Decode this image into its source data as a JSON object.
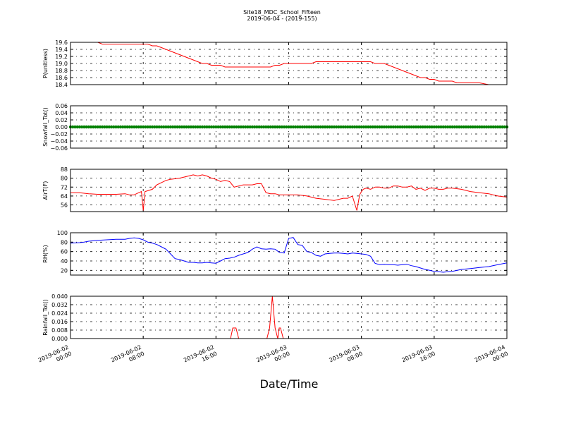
{
  "title": "Site18_MDC_School_Fifteen",
  "subtitle": "2019-06-04 - (2019-155)",
  "xlabel": "Date/Time",
  "x_ticks": [
    {
      "t": 0,
      "line1": "2019-06-02",
      "line2": "00:00"
    },
    {
      "t": 8,
      "line1": "2019-06-02",
      "line2": "08:00"
    },
    {
      "t": 16,
      "line1": "2019-06-02",
      "line2": "16:00"
    },
    {
      "t": 24,
      "line1": "2019-06-03",
      "line2": "00:00"
    },
    {
      "t": 32,
      "line1": "2019-06-03",
      "line2": "08:00"
    },
    {
      "t": 40,
      "line1": "2019-06-03",
      "line2": "16:00"
    },
    {
      "t": 48,
      "line1": "2019-06-04",
      "line2": "00:00"
    }
  ],
  "chart_data": [
    {
      "type": "line",
      "ylabel": "P(unitless)",
      "ylim": [
        18.4,
        19.6
      ],
      "yticks": [
        "19.6",
        "19.4",
        "19.2",
        "19.0",
        "18.8",
        "18.6",
        "18.4"
      ],
      "grid": true,
      "series": [
        {
          "color": "#ff0000",
          "x": [
            3.0,
            3.5,
            4,
            6,
            8,
            8.5,
            9,
            9.5,
            10,
            10.5,
            11,
            11.5,
            12,
            12.5,
            13,
            13.5,
            14,
            14.5,
            15,
            15.5,
            16,
            16.5,
            17,
            17.5,
            18,
            18.5,
            19,
            19.5,
            20,
            20.5,
            21,
            21.5,
            22,
            22.5,
            23,
            23.5,
            24,
            24.5,
            25,
            25.5,
            26,
            26.5,
            27,
            27.5,
            28,
            28.5,
            29,
            30,
            31,
            32,
            33,
            33.5,
            34,
            34.5,
            35,
            35.5,
            36,
            36.5,
            37,
            37.5,
            38,
            38.5,
            39,
            39.5,
            40,
            40.5,
            41,
            41.5,
            42,
            42.5,
            43,
            44,
            45,
            46,
            47,
            48
          ],
          "y": [
            19.6,
            19.55,
            19.55,
            19.55,
            19.55,
            19.55,
            19.5,
            19.5,
            19.45,
            19.4,
            19.35,
            19.3,
            19.25,
            19.2,
            19.15,
            19.1,
            19.05,
            19.0,
            19.0,
            18.95,
            18.95,
            18.95,
            18.9,
            18.9,
            18.9,
            18.9,
            18.9,
            18.9,
            18.9,
            18.9,
            18.9,
            18.9,
            18.9,
            18.95,
            18.95,
            19.0,
            19.0,
            19.0,
            19.0,
            19.0,
            19.0,
            19.0,
            19.05,
            19.05,
            19.05,
            19.05,
            19.05,
            19.05,
            19.05,
            19.05,
            19.05,
            19.0,
            19.0,
            19.0,
            18.95,
            18.9,
            18.85,
            18.8,
            18.75,
            18.7,
            18.65,
            18.6,
            18.6,
            18.55,
            18.55,
            18.5,
            18.5,
            18.5,
            18.5,
            18.45,
            18.45,
            18.45,
            18.45,
            18.4,
            18.4,
            18.4
          ]
        }
      ]
    },
    {
      "type": "scatter",
      "ylabel": "Snowfall_Tot()",
      "ylim": [
        -0.06,
        0.06
      ],
      "yticks": [
        "0.06",
        "0.04",
        "0.02",
        "0.00",
        "−0.02",
        "−0.04",
        "−0.06"
      ],
      "grid": true,
      "series": [
        {
          "color": "#008000",
          "constant": 0.0,
          "x_start": 0,
          "x_end": 48,
          "step": 0.25
        }
      ]
    },
    {
      "type": "line",
      "ylabel": "AirT(F)",
      "ylim": [
        50,
        88
      ],
      "yticks": [
        "88",
        "80",
        "72",
        "64",
        "56"
      ],
      "grid": true,
      "series": [
        {
          "color": "#ff0000",
          "x": [
            0,
            1,
            2,
            3,
            4,
            5,
            6,
            6.5,
            7,
            7.5,
            7.8,
            8,
            8.2,
            9,
            9.5,
            10,
            10.5,
            11,
            12,
            13,
            13.5,
            14,
            14.5,
            15,
            15.5,
            16,
            16.5,
            17,
            17.5,
            18,
            18.5,
            19,
            19.5,
            20,
            20.5,
            21,
            21.5,
            22,
            22.5,
            23,
            23.5,
            24,
            24.5,
            25,
            26,
            27,
            28,
            29,
            30,
            30.5,
            31,
            31.5,
            31.8,
            32,
            32.2,
            32.5,
            33,
            33.5,
            34,
            34.5,
            35,
            35.5,
            36,
            36.5,
            37,
            37.5,
            38,
            38.5,
            39,
            39.5,
            40,
            40.5,
            41,
            41.5,
            42,
            43,
            44,
            45,
            46,
            47,
            48
          ],
          "y": [
            67,
            67,
            66,
            65.5,
            65.5,
            65.5,
            66,
            65,
            65,
            67,
            68,
            51,
            68,
            70,
            74,
            76,
            78,
            79,
            80,
            82,
            83,
            82,
            83,
            82,
            80,
            79,
            77,
            78,
            77,
            72,
            73,
            74,
            74,
            74,
            75,
            75,
            67,
            66,
            66,
            65,
            65,
            65,
            65,
            65,
            64,
            62,
            61,
            60,
            62,
            62,
            64,
            51,
            65,
            68,
            70,
            71,
            70,
            72,
            72,
            71,
            71,
            73,
            73,
            72,
            72,
            73,
            70,
            71,
            69,
            71,
            71,
            70,
            70,
            71,
            71,
            70,
            68,
            67,
            66,
            64,
            63
          ]
        }
      ]
    },
    {
      "type": "line",
      "ylabel": "RH(%)",
      "ylim": [
        10,
        100
      ],
      "yticks": [
        "100",
        "80",
        "60",
        "40",
        "20"
      ],
      "grid": true,
      "series": [
        {
          "color": "#0000ff",
          "x": [
            0,
            1,
            1.5,
            2,
            3,
            4,
            5,
            6,
            6.5,
            7,
            7.5,
            8,
            8.5,
            9,
            9.5,
            10,
            10.5,
            11,
            11.5,
            12,
            12.5,
            13,
            13.5,
            14,
            14.5,
            15,
            15.5,
            16,
            16.5,
            17,
            17.5,
            18,
            18.5,
            19,
            19.5,
            20,
            20.5,
            21,
            21.5,
            22,
            22.5,
            23,
            23.5,
            24,
            24.5,
            25,
            25.5,
            26,
            26.5,
            27,
            27.5,
            28,
            28.5,
            29,
            29.5,
            30,
            30.5,
            31,
            31.5,
            32,
            32.5,
            33,
            33.5,
            34,
            34.5,
            35,
            35.5,
            36,
            36.5,
            37,
            37.5,
            38,
            38.5,
            39,
            39.5,
            40,
            40.5,
            41,
            41.5,
            42,
            43,
            44,
            45,
            46,
            47,
            48
          ],
          "y": [
            78,
            79,
            80,
            82,
            84,
            85,
            86,
            86,
            88,
            89,
            88,
            85,
            80,
            78,
            75,
            70,
            65,
            55,
            45,
            43,
            40,
            37,
            37,
            36,
            36,
            37,
            36,
            35,
            40,
            45,
            46,
            48,
            52,
            55,
            58,
            65,
            70,
            66,
            65,
            66,
            65,
            58,
            57,
            88,
            90,
            75,
            73,
            60,
            58,
            52,
            50,
            55,
            56,
            57,
            57,
            56,
            55,
            57,
            56,
            55,
            54,
            50,
            35,
            32,
            33,
            32,
            32,
            31,
            32,
            33,
            30,
            28,
            25,
            22,
            20,
            18,
            17,
            16,
            17,
            18,
            22,
            24,
            26,
            28,
            32,
            36
          ]
        }
      ]
    },
    {
      "type": "line",
      "ylabel": "Rainfall_Tot()",
      "ylim": [
        0,
        0.04
      ],
      "yticks": [
        "0.040",
        "0.032",
        "0.024",
        "0.016",
        "0.008",
        "0.000"
      ],
      "grid": true,
      "series": [
        {
          "color": "#ff0000",
          "x": [
            0,
            17.6,
            17.85,
            18.2,
            18.5,
            21.6,
            21.9,
            22.2,
            22.5,
            22.8,
            22.95,
            23.1,
            23.4,
            48
          ],
          "y": [
            0,
            0,
            0.01,
            0.01,
            0,
            0,
            0.01,
            0.04,
            0.01,
            0,
            0.01,
            0.01,
            0,
            0
          ]
        }
      ]
    }
  ]
}
